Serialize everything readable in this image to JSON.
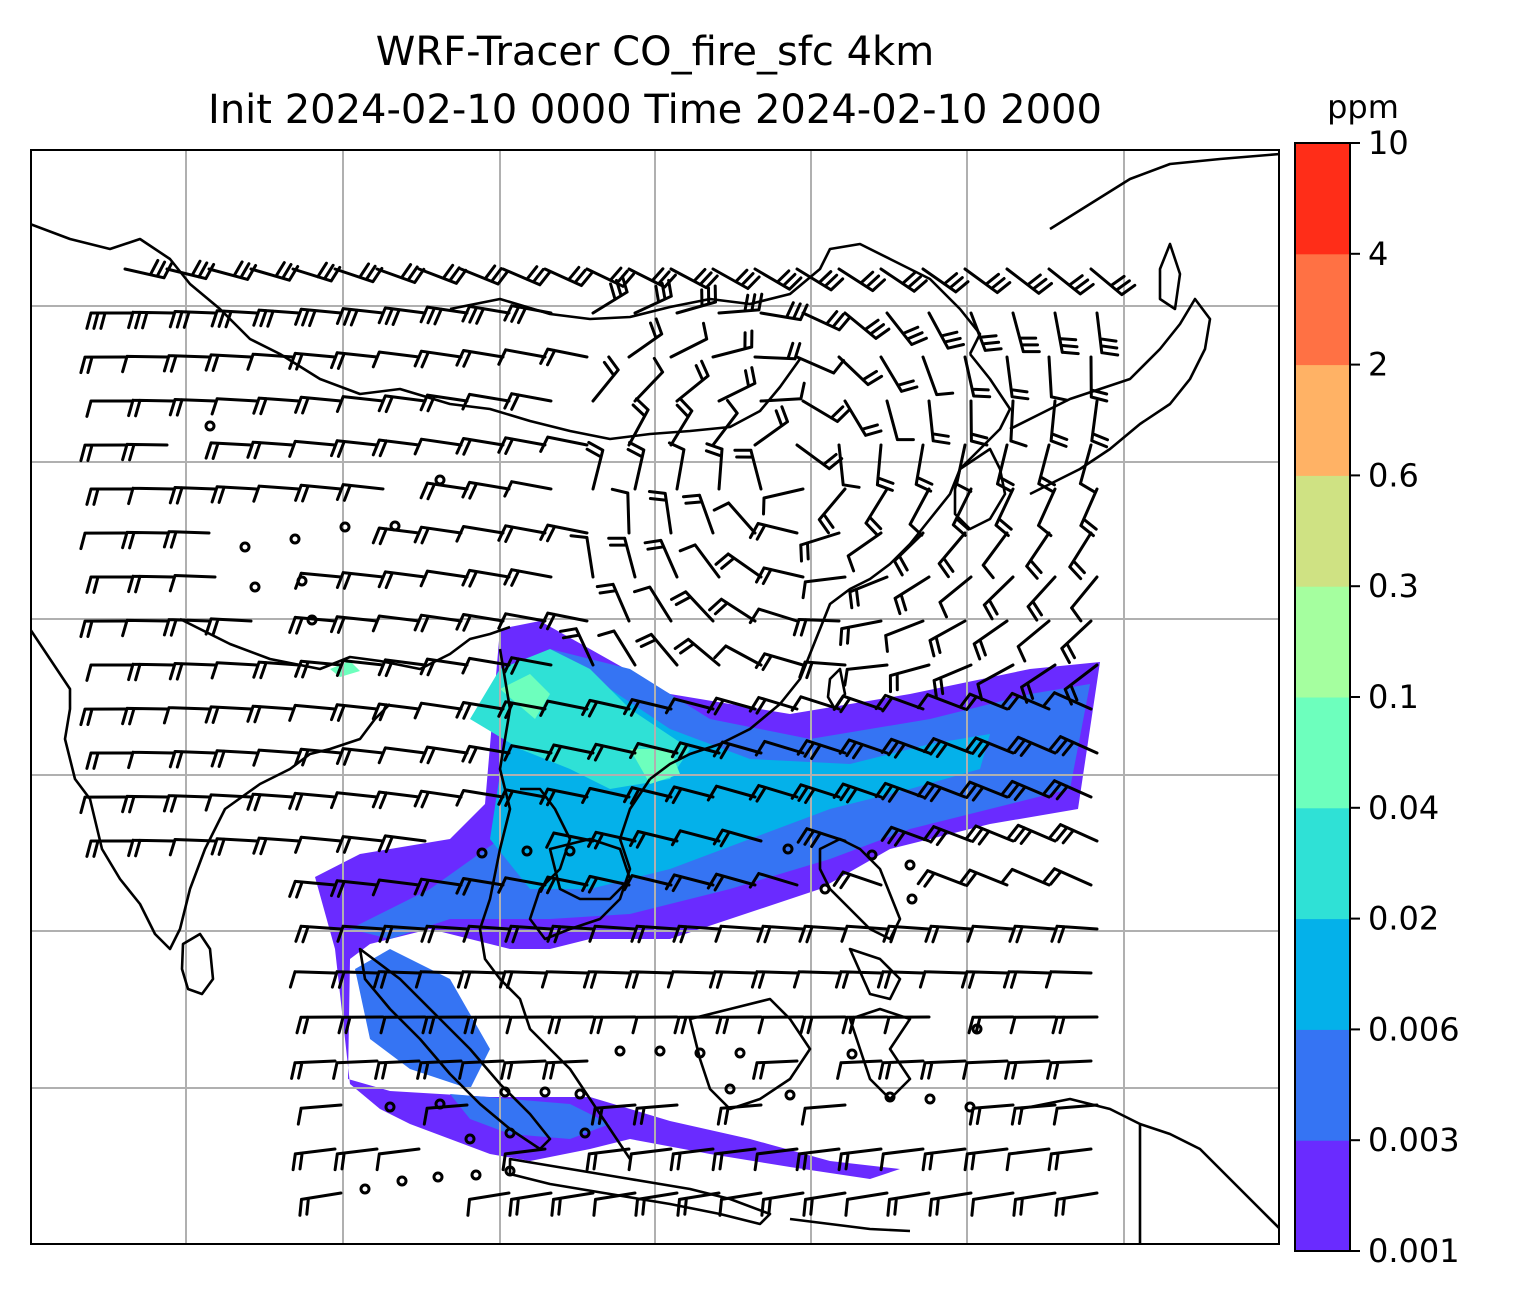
{
  "title": {
    "line1": "WRF-Tracer CO_fire_sfc 4km",
    "line2": "Init 2024-02-10 0000 Time 2024-02-10 2000"
  },
  "colorbar": {
    "unit": "ppm",
    "levels": [
      {
        "label": "0.001",
        "color": "#6a2bff"
      },
      {
        "label": "0.003",
        "color": "#3574f3"
      },
      {
        "label": "0.006",
        "color": "#04b1ea"
      },
      {
        "label": "0.02",
        "color": "#2fe1d6"
      },
      {
        "label": "0.04",
        "color": "#6dffbd"
      },
      {
        "label": "0.1",
        "color": "#a5ff9f"
      },
      {
        "label": "0.3",
        "color": "#cfe283"
      },
      {
        "label": "0.6",
        "color": "#ffb265"
      },
      {
        "label": "2",
        "color": "#ff7144"
      },
      {
        "label": "4",
        "color": "#ff2d18"
      },
      {
        "label": "10",
        "color": null
      }
    ]
  },
  "map": {
    "gridlines": true,
    "coastline_color": "#000000",
    "gridline_color": "#b0b0b0"
  }
}
